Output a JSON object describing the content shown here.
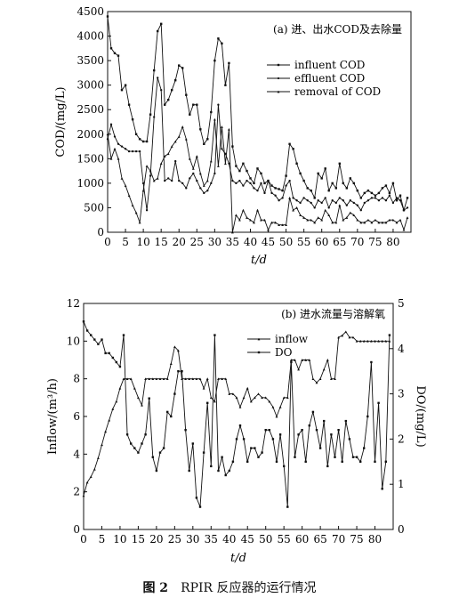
{
  "figure": {
    "caption_number": "图 2",
    "caption_text": "RPIR 反应器的运行情况"
  },
  "chart_data": [
    {
      "type": "line",
      "title": "(a) 进、出水COD及去除量",
      "xlabel": "t/d",
      "ylabel": "COD/(mg/L)",
      "xlim": [
        0,
        85
      ],
      "ylim": [
        0,
        4500
      ],
      "xticks": [
        0,
        5,
        10,
        15,
        20,
        25,
        30,
        35,
        40,
        45,
        50,
        55,
        60,
        65,
        70,
        75,
        80
      ],
      "yticks": [
        0,
        500,
        1000,
        1500,
        2000,
        2500,
        3000,
        3500,
        4000,
        4500
      ],
      "legend_position": "top-right",
      "series": [
        {
          "name": "influent COD",
          "marker": "square",
          "x": [
            0,
            1,
            2,
            3,
            4,
            5,
            6,
            7,
            8,
            9,
            10,
            11,
            12,
            13,
            14,
            15,
            16,
            17,
            18,
            19,
            20,
            21,
            22,
            23,
            24,
            25,
            26,
            27,
            28,
            29,
            30,
            31,
            32,
            33,
            34,
            35,
            36,
            37,
            38,
            39,
            40,
            41,
            42,
            43,
            44,
            45,
            46,
            47,
            48,
            49,
            50,
            51,
            52,
            53,
            54,
            55,
            56,
            57,
            58,
            59,
            60,
            61,
            62,
            63,
            64,
            65,
            66,
            67,
            68,
            69,
            70,
            71,
            72,
            73,
            74,
            75,
            76,
            77,
            78,
            79,
            80,
            81,
            82,
            83,
            84
          ],
          "values": [
            4400,
            3750,
            3650,
            3600,
            2900,
            3000,
            2600,
            2300,
            2000,
            1900,
            1850,
            1850,
            2400,
            3300,
            4100,
            4250,
            2600,
            2700,
            2900,
            3100,
            3400,
            3350,
            2800,
            2400,
            2600,
            2600,
            2100,
            1800,
            1900,
            2450,
            3500,
            3950,
            3850,
            3000,
            3450,
            1750,
            1350,
            1250,
            1400,
            1250,
            1100,
            1000,
            1300,
            1200,
            1000,
            1050,
            950,
            900,
            880,
            850,
            1150,
            1800,
            1700,
            1400,
            1200,
            1050,
            900,
            850,
            700,
            1200,
            1100,
            1300,
            850,
            1000,
            900,
            1400,
            1000,
            900,
            1100,
            1000,
            850,
            700,
            800,
            850,
            800,
            750,
            800,
            900,
            950,
            800,
            1000,
            650,
            750,
            450,
            700
          ]
        },
        {
          "name": "effluent COD",
          "marker": "circle",
          "x": [
            0,
            1,
            2,
            3,
            4,
            5,
            6,
            7,
            8,
            9,
            10,
            11,
            12,
            13,
            14,
            15,
            16,
            17,
            18,
            19,
            20,
            21,
            22,
            23,
            24,
            25,
            26,
            27,
            28,
            29,
            30,
            31,
            32,
            33,
            34,
            35,
            36,
            37,
            38,
            39,
            40,
            41,
            42,
            43,
            44,
            45,
            46,
            47,
            48,
            49,
            50,
            51,
            52,
            53,
            54,
            55,
            56,
            57,
            58,
            59,
            60,
            61,
            62,
            63,
            64,
            65,
            66,
            67,
            68,
            69,
            70,
            71,
            72,
            73,
            74,
            75,
            76,
            77,
            78,
            79,
            80,
            81,
            82,
            83,
            84
          ],
          "values": [
            1900,
            2200,
            1950,
            1800,
            1750,
            1700,
            1650,
            1650,
            1650,
            1650,
            1000,
            450,
            1150,
            2350,
            3150,
            2900,
            1050,
            1100,
            1050,
            1450,
            1050,
            1000,
            900,
            1100,
            1200,
            1050,
            900,
            800,
            850,
            1000,
            1200,
            2600,
            1700,
            1600,
            1400,
            1050,
            1000,
            1050,
            950,
            1050,
            1000,
            900,
            850,
            1000,
            800,
            1050,
            800,
            750,
            650,
            700,
            950,
            1050,
            700,
            650,
            600,
            700,
            650,
            600,
            500,
            650,
            600,
            700,
            500,
            650,
            600,
            700,
            650,
            550,
            650,
            600,
            550,
            450,
            600,
            650,
            700,
            700,
            650,
            700,
            650,
            750,
            600,
            700,
            650,
            450,
            500
          ]
        },
        {
          "name": "removal of COD",
          "marker": "triangle",
          "x": [
            0,
            1,
            2,
            3,
            4,
            5,
            6,
            7,
            8,
            9,
            10,
            11,
            12,
            13,
            14,
            15,
            16,
            17,
            18,
            19,
            20,
            21,
            22,
            23,
            24,
            25,
            26,
            27,
            28,
            29,
            30,
            31,
            32,
            33,
            34,
            35,
            36,
            37,
            38,
            39,
            40,
            41,
            42,
            43,
            44,
            45,
            46,
            47,
            48,
            49,
            50,
            51,
            52,
            53,
            54,
            55,
            56,
            57,
            58,
            59,
            60,
            61,
            62,
            63,
            64,
            65,
            66,
            67,
            68,
            69,
            70,
            71,
            72,
            73,
            74,
            75,
            76,
            77,
            78,
            79,
            80,
            81,
            82,
            83,
            84
          ],
          "values": [
            2000,
            1500,
            1700,
            1500,
            1100,
            950,
            750,
            550,
            400,
            200,
            850,
            1350,
            1250,
            1050,
            1100,
            1400,
            1550,
            1600,
            1750,
            1850,
            1950,
            2150,
            1900,
            1500,
            1300,
            1550,
            1200,
            950,
            1050,
            1450,
            2300,
            1350,
            2150,
            1400,
            2100,
            0,
            350,
            250,
            450,
            300,
            250,
            200,
            450,
            250,
            250,
            50,
            200,
            200,
            150,
            150,
            150,
            700,
            450,
            500,
            350,
            300,
            250,
            250,
            200,
            300,
            250,
            450,
            350,
            200,
            200,
            550,
            250,
            300,
            400,
            350,
            250,
            200,
            200,
            250,
            200,
            250,
            200,
            200,
            200,
            250,
            250,
            200,
            250,
            50,
            300
          ]
        }
      ]
    },
    {
      "type": "line",
      "title": "(b) 进水流量与溶解氧",
      "xlabel": "t/d",
      "ylabel": "Inflow/(m³/h)",
      "y2label": "DO/(mg/L)",
      "xlim": [
        0,
        85
      ],
      "ylim": [
        0,
        12
      ],
      "y2lim": [
        0,
        5
      ],
      "xticks": [
        0,
        5,
        10,
        15,
        20,
        25,
        30,
        35,
        40,
        45,
        50,
        55,
        60,
        65,
        70,
        75,
        80
      ],
      "yticks": [
        0,
        2,
        4,
        6,
        8,
        10,
        12
      ],
      "y2ticks": [
        0,
        1,
        2,
        3,
        4,
        5
      ],
      "legend_position": "top-center",
      "series": [
        {
          "name": "inflow",
          "axis": "left",
          "marker": "triangle",
          "x": [
            0,
            1,
            2,
            3,
            4,
            5,
            6,
            7,
            8,
            9,
            10,
            11,
            12,
            13,
            14,
            15,
            16,
            17,
            18,
            19,
            20,
            21,
            22,
            23,
            24,
            25,
            26,
            27,
            28,
            29,
            30,
            31,
            32,
            33,
            34,
            35,
            36,
            37,
            38,
            39,
            40,
            41,
            42,
            43,
            44,
            45,
            46,
            47,
            48,
            49,
            50,
            51,
            52,
            53,
            54,
            55,
            56,
            57,
            58,
            59,
            60,
            61,
            62,
            63,
            64,
            65,
            66,
            67,
            68,
            69,
            70,
            71,
            72,
            73,
            74,
            75,
            76,
            77,
            78,
            79,
            80,
            81,
            82,
            83,
            84
          ],
          "values": [
            1.8,
            2.5,
            2.8,
            3.2,
            3.8,
            4.5,
            5.2,
            5.8,
            6.4,
            6.8,
            7.5,
            8.0,
            8.0,
            8.0,
            7.5,
            7.0,
            6.6,
            8.0,
            8.0,
            8.0,
            8.0,
            8.0,
            8.0,
            8.0,
            8.8,
            9.7,
            9.5,
            8.0,
            8.0,
            8.0,
            8.0,
            8.0,
            8.0,
            7.5,
            8.0,
            7.0,
            6.8,
            8.0,
            8.0,
            8.0,
            7.2,
            7.2,
            7.0,
            6.5,
            7.0,
            7.5,
            6.8,
            7.0,
            7.2,
            7.0,
            7.0,
            6.8,
            6.5,
            6.0,
            6.5,
            7.0,
            7.0,
            9.0,
            9.0,
            8.5,
            9.0,
            9.0,
            9.0,
            8.0,
            7.8,
            8.0,
            8.5,
            9.0,
            8.0,
            8.0,
            10.2,
            10.3,
            10.5,
            10.2,
            10.2,
            10.0,
            10.0,
            10.0,
            10.0,
            10.0,
            10.0,
            10.0,
            10.0,
            10.0,
            10.0
          ]
        },
        {
          "name": "DO",
          "axis": "right",
          "marker": "square",
          "x": [
            0,
            1,
            2,
            3,
            4,
            5,
            6,
            7,
            8,
            9,
            10,
            11,
            12,
            13,
            14,
            15,
            16,
            17,
            18,
            19,
            20,
            21,
            22,
            23,
            24,
            25,
            26,
            27,
            28,
            29,
            30,
            31,
            32,
            33,
            34,
            35,
            36,
            37,
            38,
            39,
            40,
            41,
            42,
            43,
            44,
            45,
            46,
            47,
            48,
            49,
            50,
            51,
            52,
            53,
            54,
            55,
            56,
            57,
            58,
            59,
            60,
            61,
            62,
            63,
            64,
            65,
            66,
            67,
            68,
            69,
            70,
            71,
            72,
            73,
            74,
            75,
            76,
            77,
            78,
            79,
            80,
            81,
            82,
            83,
            84
          ],
          "values": [
            4.6,
            4.4,
            4.3,
            4.2,
            4.1,
            4.2,
            3.9,
            3.9,
            3.8,
            3.7,
            3.6,
            4.3,
            2.1,
            1.9,
            1.8,
            1.7,
            1.9,
            2.1,
            2.9,
            1.6,
            1.3,
            1.7,
            1.8,
            2.6,
            2.5,
            3.0,
            3.5,
            3.5,
            2.2,
            1.3,
            1.9,
            0.7,
            0.5,
            1.7,
            2.8,
            1.4,
            4.3,
            1.3,
            1.6,
            1.2,
            1.3,
            1.5,
            2.0,
            2.3,
            2.0,
            1.5,
            1.8,
            1.8,
            1.6,
            1.7,
            2.2,
            2.2,
            2.0,
            1.5,
            2.1,
            1.4,
            0.5,
            3.7,
            1.6,
            2.1,
            2.2,
            1.5,
            2.3,
            2.6,
            2.2,
            1.8,
            2.4,
            1.4,
            2.1,
            1.6,
            2.2,
            1.5,
            2.4,
            2.0,
            1.6,
            1.6,
            1.5,
            1.8,
            2.5,
            3.7,
            1.5,
            2.8,
            0.9,
            1.5,
            4.3
          ]
        }
      ]
    }
  ]
}
